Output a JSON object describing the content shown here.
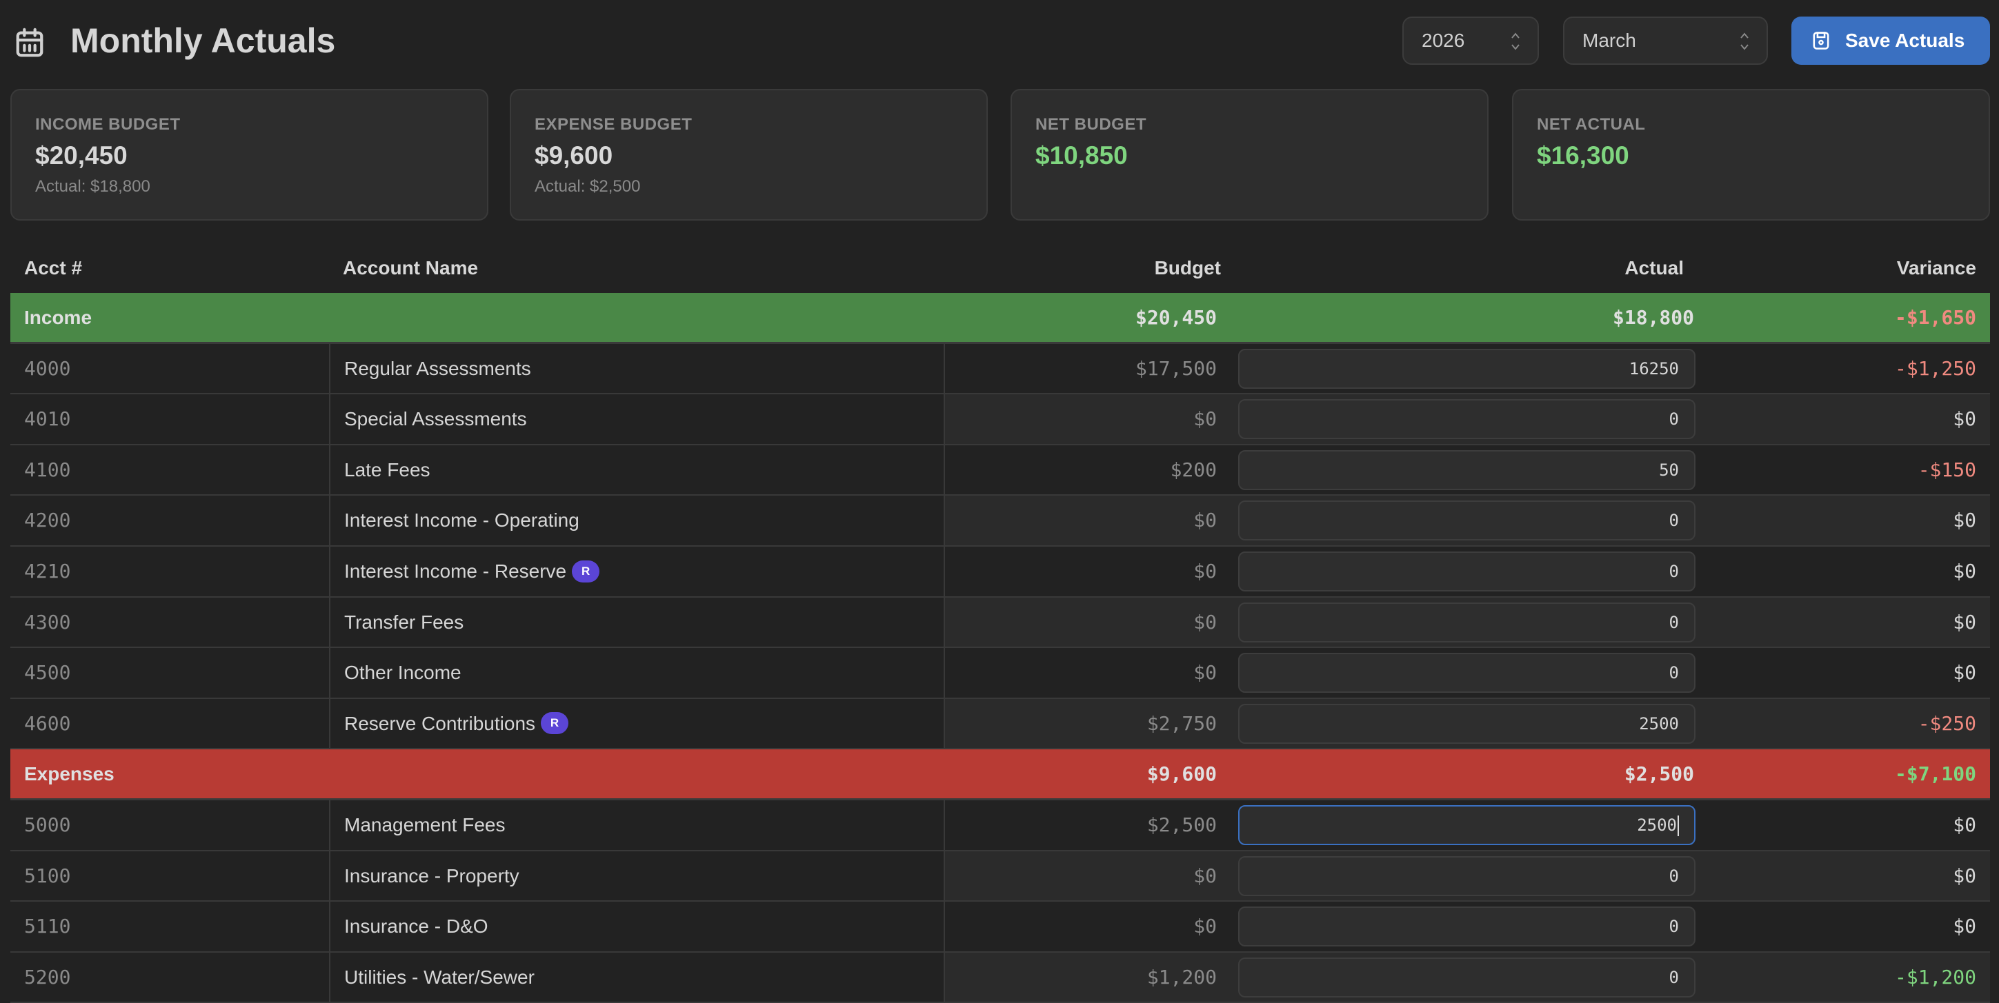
{
  "header": {
    "title": "Monthly Actuals",
    "icon": "calendar-icon"
  },
  "controls": {
    "year": "2026",
    "month": "March",
    "save_label": "Save Actuals",
    "save_icon": "floppy-disk-icon",
    "accent": "#3a70c1"
  },
  "summary": [
    {
      "label": "INCOME BUDGET",
      "value": "$20,450",
      "sub": "Actual: $18,800"
    },
    {
      "label": "EXPENSE BUDGET",
      "value": "$9,600",
      "sub": "Actual: $2,500"
    },
    {
      "label": "NET BUDGET",
      "value": "$10,850"
    },
    {
      "label": "NET ACTUAL",
      "value": "$16,300"
    }
  ],
  "table": {
    "columns": [
      "Acct #",
      "Account Name",
      "Budget",
      "Actual",
      "Variance"
    ],
    "colors": {
      "income_group": "#4a8847",
      "expense_group": "#b83b34",
      "negative": "#f08a80",
      "positive": "#7fd57f",
      "reserve_badge": "#5b45d6"
    },
    "rows": [
      {
        "type": "group",
        "kind": "income",
        "label": "Income",
        "budget": "$20,450",
        "actual": "$18,800",
        "variance": "-$1,650",
        "tone": "neg"
      },
      {
        "acct": "4000",
        "name": "Regular Assessments",
        "budget": "$17,500",
        "actual": "16250",
        "variance": "-$1,250",
        "tone": "neg"
      },
      {
        "acct": "4010",
        "name": "Special Assessments",
        "budget": "$0",
        "actual": "0",
        "variance": "$0"
      },
      {
        "acct": "4100",
        "name": "Late Fees",
        "budget": "$200",
        "actual": "50",
        "variance": "-$150",
        "tone": "neg"
      },
      {
        "acct": "4200",
        "name": "Interest Income - Operating",
        "budget": "$0",
        "actual": "0",
        "variance": "$0"
      },
      {
        "acct": "4210",
        "name": "Interest Income - Reserve",
        "badge": "R",
        "budget": "$0",
        "actual": "0",
        "variance": "$0"
      },
      {
        "acct": "4300",
        "name": "Transfer Fees",
        "budget": "$0",
        "actual": "0",
        "variance": "$0"
      },
      {
        "acct": "4500",
        "name": "Other Income",
        "budget": "$0",
        "actual": "0",
        "variance": "$0"
      },
      {
        "acct": "4600",
        "name": "Reserve Contributions",
        "badge": "R",
        "budget": "$2,750",
        "actual": "2500",
        "variance": "-$250",
        "tone": "neg"
      },
      {
        "type": "group",
        "kind": "expense",
        "label": "Expenses",
        "budget": "$9,600",
        "actual": "$2,500",
        "variance": "-$7,100",
        "tone": "pos"
      },
      {
        "acct": "5000",
        "name": "Management Fees",
        "budget": "$2,500",
        "actual": "2500",
        "variance": "$0",
        "focused": true
      },
      {
        "acct": "5100",
        "name": "Insurance - Property",
        "budget": "$0",
        "actual": "0",
        "variance": "$0"
      },
      {
        "acct": "5110",
        "name": "Insurance - D&O",
        "budget": "$0",
        "actual": "0",
        "variance": "$0"
      },
      {
        "acct": "5200",
        "name": "Utilities - Water/Sewer",
        "budget": "$1,200",
        "actual": "0",
        "variance": "-$1,200",
        "tone": "pos"
      }
    ]
  }
}
